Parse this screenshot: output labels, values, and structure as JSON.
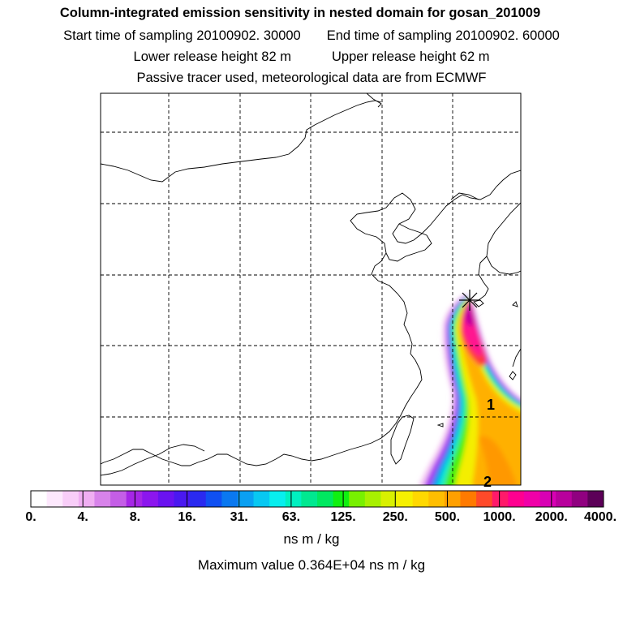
{
  "header": {
    "title": "Column-integrated emission sensitivity in nested domain for gosan_201009",
    "start_label": "Start time of sampling 20100902. 30000",
    "end_label": "End time of sampling 20100902. 60000",
    "lower_label": "Lower release height   82 m",
    "upper_label": "Upper release height   62 m",
    "tracer_label": "Passive tracer used, meteorological data are from ECMWF"
  },
  "map": {
    "release_marker": "star-icon",
    "contour_labels": [
      "1",
      "2"
    ]
  },
  "colorbar": {
    "tick_labels": [
      "0.",
      "4.",
      "8.",
      "16.",
      "31.",
      "63.",
      "125.",
      "250.",
      "500.",
      "1000.",
      "2000.",
      "4000."
    ],
    "colors": [
      "#ffffff",
      "#fde8fd",
      "#f8cdf8",
      "#f0aef2",
      "#d883ea",
      "#c45ee6",
      "#a626e6",
      "#8c16ee",
      "#6a12f0",
      "#4a18f0",
      "#2a2af0",
      "#1050f2",
      "#0a78f0",
      "#0aa0f2",
      "#08c8f2",
      "#08eeee",
      "#00f0c0",
      "#00e890",
      "#00e860",
      "#10f010",
      "#78f000",
      "#a8f000",
      "#d8f000",
      "#f6f000",
      "#ffd800",
      "#ffbe00",
      "#ffa000",
      "#ff7a00",
      "#ff4a2a",
      "#ff1a6a",
      "#ff0090",
      "#f000a8",
      "#d800b4",
      "#b8009c",
      "#900080",
      "#5c0058"
    ],
    "units": "ns m / kg",
    "max_value": "Maximum value  0.364E+04 ns m / kg"
  }
}
